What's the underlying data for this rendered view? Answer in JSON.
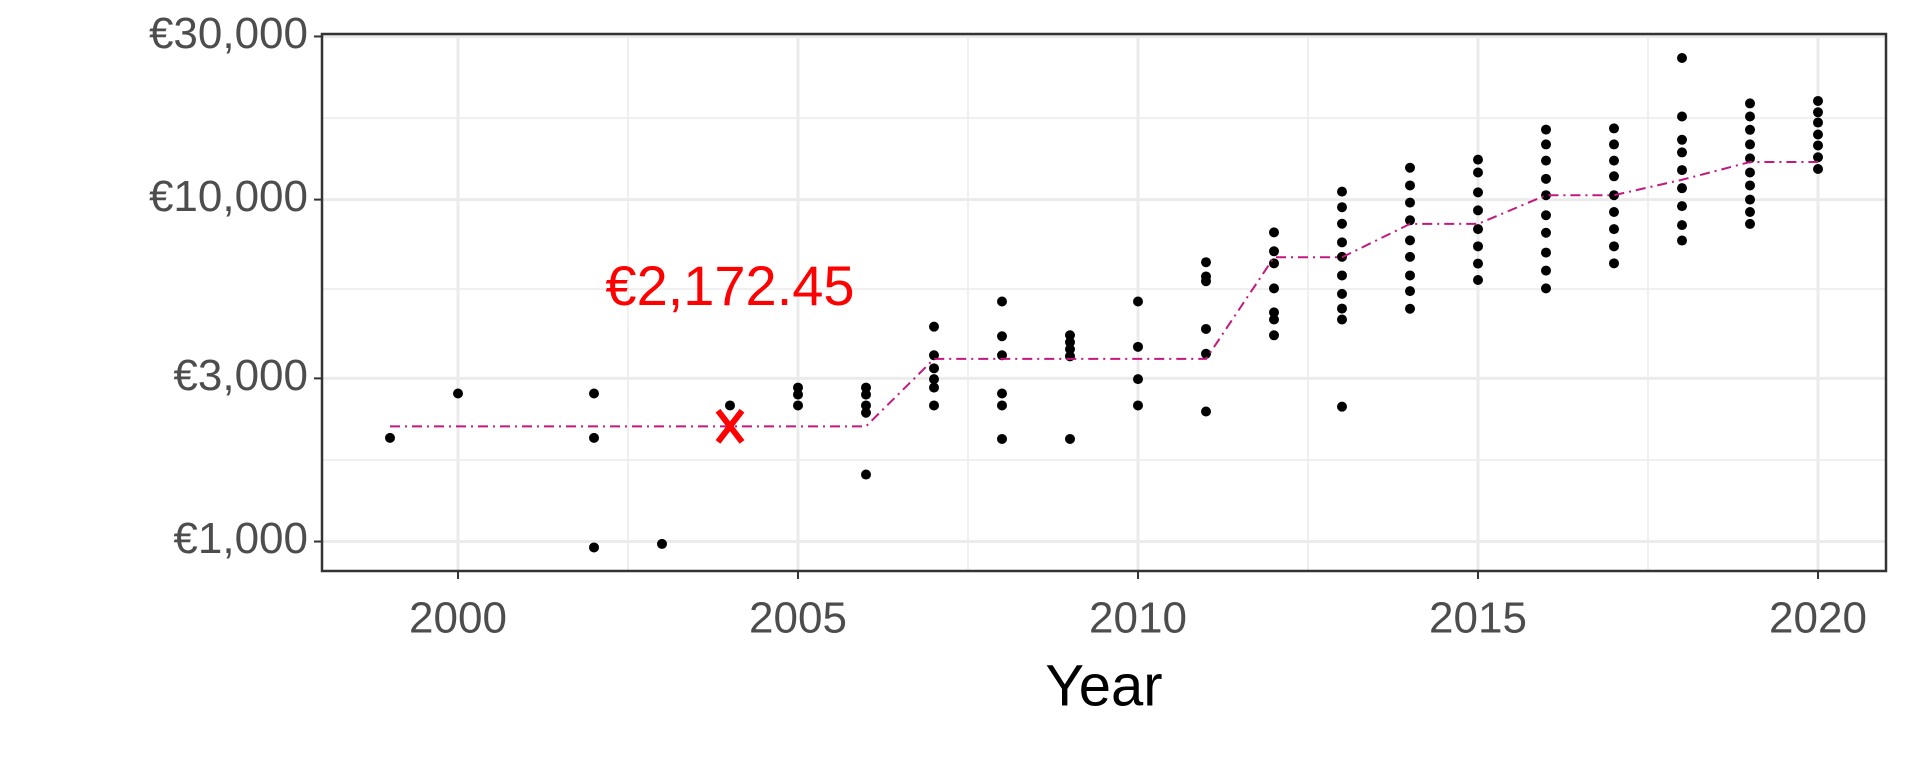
{
  "chart_data": {
    "type": "scatter",
    "x_label": "Year",
    "log_y": true,
    "grid": true,
    "xlim": [
      1998,
      2021
    ],
    "xticks": [
      2000,
      2005,
      2010,
      2015,
      2020
    ],
    "ylim": [
      820,
      30500
    ],
    "yticks": [
      {
        "value": 1000,
        "label": "€1,000"
      },
      {
        "value": 3000,
        "label": "€3,000"
      },
      {
        "value": 10000,
        "label": "€10,000"
      },
      {
        "value": 30000,
        "label": "€30,000"
      }
    ],
    "series": [
      {
        "type": "scatter",
        "color": "#000000",
        "x": [
          1999,
          2000,
          2002,
          2002,
          2002,
          2003,
          2004,
          2005,
          2005,
          2005,
          2006,
          2006,
          2006,
          2006,
          2006,
          2007,
          2007,
          2007,
          2007,
          2007,
          2007,
          2008,
          2008,
          2008,
          2008,
          2008,
          2008,
          2009,
          2009,
          2009,
          2009,
          2009,
          2010,
          2010,
          2010,
          2010,
          2011,
          2011,
          2011,
          2011,
          2011,
          2011,
          2012,
          2012,
          2012,
          2012,
          2012,
          2012,
          2012,
          2013,
          2013,
          2013,
          2013,
          2013,
          2013,
          2013,
          2013,
          2013,
          2013,
          2014,
          2014,
          2014,
          2014,
          2014,
          2014,
          2014,
          2014,
          2014,
          2015,
          2015,
          2015,
          2015,
          2015,
          2015,
          2015,
          2015,
          2016,
          2016,
          2016,
          2016,
          2016,
          2016,
          2016,
          2016,
          2016,
          2016,
          2017,
          2017,
          2017,
          2017,
          2017,
          2017,
          2017,
          2017,
          2017,
          2018,
          2018,
          2018,
          2018,
          2018,
          2018,
          2018,
          2018,
          2018,
          2019,
          2019,
          2019,
          2019,
          2019,
          2019,
          2019,
          2019,
          2019,
          2019,
          2020,
          2020,
          2020,
          2020,
          2020,
          2020,
          2020
        ],
        "values": [
          2010,
          2710,
          2710,
          2010,
          961,
          984,
          2500,
          2820,
          2690,
          2500,
          2820,
          2690,
          2500,
          2380,
          1570,
          4250,
          3505,
          3210,
          2985,
          2820,
          2500,
          5035,
          3985,
          3505,
          2710,
          2500,
          1995,
          4010,
          3825,
          3650,
          3480,
          1995,
          5035,
          3710,
          2985,
          2500,
          6560,
          5960,
          5770,
          4185,
          3540,
          2400,
          8020,
          7060,
          6510,
          5500,
          4680,
          4460,
          4010,
          10550,
          9500,
          8500,
          7500,
          6800,
          6000,
          5300,
          4800,
          4460,
          2480,
          12390,
          11000,
          9800,
          8700,
          7600,
          6800,
          6000,
          5400,
          4795,
          13090,
          12000,
          10500,
          9300,
          8200,
          7300,
          6500,
          5820,
          16020,
          14500,
          13000,
          11500,
          10300,
          9000,
          8000,
          7000,
          6200,
          5500,
          16150,
          14500,
          13000,
          11700,
          10300,
          9200,
          8200,
          7300,
          6510,
          25950,
          17500,
          14960,
          13740,
          12200,
          10800,
          9570,
          8420,
          7590,
          19110,
          17500,
          16000,
          14500,
          13200,
          12000,
          11000,
          10000,
          9200,
          8490,
          19430,
          18000,
          16800,
          15500,
          14400,
          13300,
          12290
        ]
      },
      {
        "type": "line",
        "color": "#c2187f",
        "dash": "dashdot",
        "x": [
          1999,
          2006,
          2007,
          2011,
          2012,
          2013,
          2014,
          2015,
          2016,
          2017,
          2018,
          2019,
          2020
        ],
        "values": [
          2172.45,
          2172.45,
          3420,
          3420,
          6780,
          6780,
          8490,
          8490,
          10300,
          10300,
          11430,
          12880,
          12880
        ]
      }
    ],
    "annotations": [
      {
        "text": "€2,172.45",
        "x": 2004,
        "y": 2172.45,
        "color": "#ff0000"
      }
    ]
  }
}
